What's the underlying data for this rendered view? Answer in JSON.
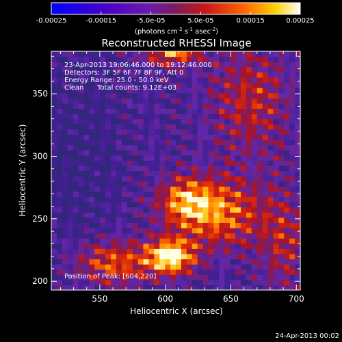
{
  "colorbar": {
    "tick_labels": [
      "-0.00025",
      "-0.00015",
      "-5.0e-05",
      "5.0e-05",
      "0.00015",
      "0.00025"
    ],
    "tick_values": [
      -0.00025,
      -0.00015,
      -5e-05,
      5e-05,
      0.00015,
      0.00025
    ],
    "unit_prefix": "(photons cm",
    "unit_exp1": "-2",
    "unit_mid1": " s",
    "unit_exp2": "-1",
    "unit_mid2": " asec",
    "unit_exp3": "-2",
    "unit_suffix": ")",
    "range": [
      -0.00025,
      0.00025
    ]
  },
  "chart_data": {
    "type": "heatmap",
    "title": "Reconstructed RHESSI Image",
    "xlabel": "Heliocentric X (arcsec)",
    "ylabel": "Heliocentric Y (arcsec)",
    "xlim": [
      513,
      703
    ],
    "ylim": [
      193,
      384
    ],
    "x_ticks": [
      550,
      600,
      650,
      700
    ],
    "y_ticks": [
      200,
      250,
      300,
      350
    ],
    "x_tick_labels": [
      "550",
      "600",
      "650",
      "700"
    ],
    "y_tick_labels": [
      "200",
      "250",
      "300",
      "350"
    ],
    "colormap": "RHESSI blue-purple-red-yellow-white",
    "annotations": [
      "23-Apr-2013 19:06:46.000 to 19:12:46.000",
      "Detectors: 3F 5F 6F 7F 8F 9F, Att 0",
      "Energy Range: 25.0 - 50.0 keV",
      "Clean",
      "Total counts: 9.12E+03"
    ],
    "peak_label": "Position of Peak: [604,220]",
    "peak_position": [
      604,
      220
    ],
    "grid_columns": 46,
    "grid_rows": 46
  },
  "footer": {
    "timestamp": "24-Apr-2013 00:02"
  }
}
